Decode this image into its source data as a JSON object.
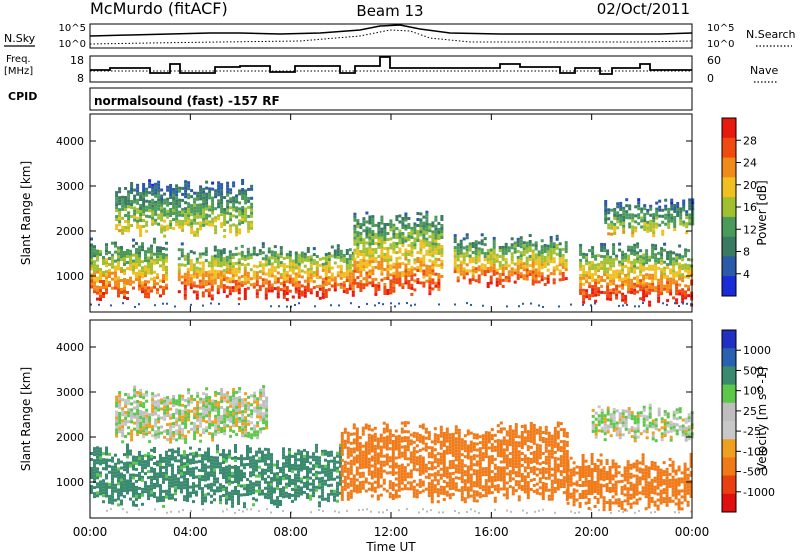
{
  "header": {
    "station": "McMurdo (fitACF)",
    "beam": "Beam 13",
    "date": "02/Oct/2011"
  },
  "strip": {
    "nsky_label": "N.Sky",
    "nsky_ticks": [
      "10^5",
      "10^0"
    ],
    "nsearch_label": "N.Search",
    "nsearch_ticks": [
      "10^5",
      "10^0"
    ],
    "freq_label_line1": "Freq.",
    "freq_label_line2": "[MHz]",
    "freq_ticks": [
      "18",
      "8"
    ],
    "nave_label": "Nave",
    "nave_ticks": [
      "60",
      "0"
    ],
    "cpid_label": "CPID",
    "cpid_text": "normalsound (fast) -157 RF"
  },
  "colors": {
    "power_scale": [
      "#1a2cd8",
      "#2a5aa8",
      "#3a7a62",
      "#4a9a5a",
      "#a0c030",
      "#f0c020",
      "#f08a18",
      "#f04a10",
      "#e81a10"
    ],
    "velocity_scale": [
      "#2030c0",
      "#2a60b0",
      "#3a8a70",
      "#5cc84a",
      "#bebebe",
      "#c8c8c8",
      "#f0a020",
      "#f07a18",
      "#e84010",
      "#e01010"
    ]
  },
  "chart_data": [
    {
      "type": "heatmap",
      "title": "Power",
      "ylabel": "Slant Range [km]",
      "xlabel": "Time UT",
      "x_ticks": [
        "00:00",
        "04:00",
        "08:00",
        "12:00",
        "16:00",
        "20:00",
        "00:00"
      ],
      "y_ticks": [
        "1000",
        "2000",
        "3000",
        "4000"
      ],
      "ylim": [
        200,
        4600
      ],
      "colorbar_label": "Power [dB]",
      "colorbar_ticks": [
        "4",
        "8",
        "12",
        "16",
        "20",
        "24",
        "28"
      ],
      "colorbar_range": [
        0,
        30
      ],
      "echo_bands": [
        {
          "t_start": 0.0,
          "t_end": 3.0,
          "range_low": 600,
          "range_high": 1700,
          "peak_db": 26
        },
        {
          "t_start": 3.5,
          "t_end": 10.5,
          "range_low": 600,
          "range_high": 1600,
          "peak_db": 28
        },
        {
          "t_start": 10.5,
          "t_end": 14.0,
          "range_low": 700,
          "range_high": 2300,
          "peak_db": 26
        },
        {
          "t_start": 14.5,
          "t_end": 19.0,
          "range_low": 900,
          "range_high": 1800,
          "peak_db": 26
        },
        {
          "t_start": 19.5,
          "t_end": 24.0,
          "range_low": 500,
          "range_high": 1600,
          "peak_db": 28
        },
        {
          "t_start": 1.0,
          "t_end": 6.5,
          "range_low": 2000,
          "range_high": 3000,
          "peak_db": 18
        },
        {
          "t_start": 20.5,
          "t_end": 24.0,
          "range_low": 2000,
          "range_high": 2600,
          "peak_db": 18
        }
      ]
    },
    {
      "type": "heatmap",
      "title": "Velocity",
      "ylabel": "Slant Range [km]",
      "xlabel": "Time UT",
      "x_ticks": [
        "00:00",
        "04:00",
        "08:00",
        "12:00",
        "16:00",
        "20:00",
        "00:00"
      ],
      "y_ticks": [
        "1000",
        "2000",
        "3000",
        "4000"
      ],
      "ylim": [
        200,
        4600
      ],
      "colorbar_label": "Velocity [m s^-1]",
      "colorbar_ticks": [
        "1000",
        "500",
        "100",
        "25",
        "-25",
        "-100",
        "-500",
        "-1000"
      ],
      "echo_bands": [
        {
          "t_start": 0.0,
          "t_end": 10.0,
          "range_low": 600,
          "range_high": 1700,
          "velocity": 150
        },
        {
          "t_start": 10.0,
          "t_end": 19.0,
          "range_low": 700,
          "range_high": 2200,
          "velocity": -300
        },
        {
          "t_start": 19.0,
          "t_end": 24.0,
          "range_low": 500,
          "range_high": 1500,
          "velocity": -300
        },
        {
          "t_start": 1.0,
          "t_end": 7.0,
          "range_low": 2000,
          "range_high": 3000,
          "velocity": 10
        },
        {
          "t_start": 20.0,
          "t_end": 24.0,
          "range_low": 2000,
          "range_high": 2600,
          "velocity": 10
        }
      ]
    }
  ]
}
